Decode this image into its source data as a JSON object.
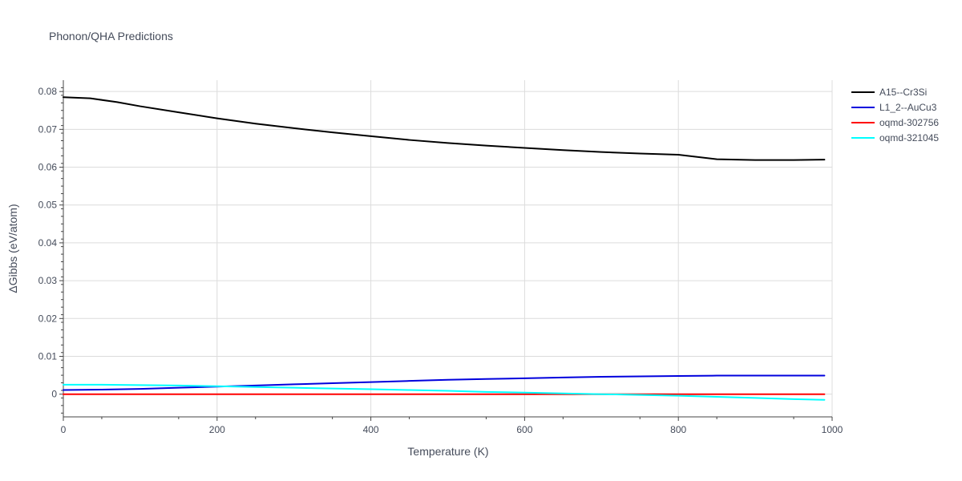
{
  "chart_data": {
    "type": "line",
    "title": "Phonon/QHA Predictions",
    "xlabel": "Temperature (K)",
    "ylabel": "ΔGibbs (eV/atom)",
    "xlim": [
      0,
      1000
    ],
    "ylim": [
      -0.006,
      0.083
    ],
    "x_ticks": [
      0,
      200,
      400,
      600,
      800,
      1000
    ],
    "y_ticks": [
      0,
      0.01,
      0.02,
      0.03,
      0.04,
      0.05,
      0.06,
      0.07,
      0.08
    ],
    "x_tick_labels": [
      "0",
      "200",
      "400",
      "600",
      "800",
      "1000"
    ],
    "y_tick_labels": [
      "0",
      "0.01",
      "0.02",
      "0.03",
      "0.04",
      "0.05",
      "0.06",
      "0.07",
      "0.08"
    ],
    "grid": true,
    "legend_position": "top-right outside",
    "series": [
      {
        "name": "A15--Cr3Si",
        "color": "#000000",
        "x": [
          0,
          35,
          70,
          100,
          150,
          200,
          250,
          300,
          350,
          400,
          450,
          500,
          550,
          600,
          650,
          700,
          750,
          800,
          850,
          900,
          950,
          990
        ],
        "y": [
          0.0785,
          0.0782,
          0.0772,
          0.0761,
          0.0745,
          0.0729,
          0.0715,
          0.0703,
          0.0692,
          0.0682,
          0.0672,
          0.0664,
          0.0657,
          0.0651,
          0.0645,
          0.064,
          0.0636,
          0.0633,
          0.0621,
          0.0619,
          0.0619,
          0.062
        ]
      },
      {
        "name": "L1_2--AuCu3",
        "color": "#0000dd",
        "x": [
          0,
          50,
          100,
          150,
          200,
          250,
          300,
          350,
          400,
          450,
          500,
          550,
          600,
          650,
          700,
          750,
          800,
          850,
          900,
          950,
          990
        ],
        "y": [
          0.0011,
          0.0012,
          0.0014,
          0.0017,
          0.002,
          0.0023,
          0.0026,
          0.0029,
          0.0032,
          0.0035,
          0.0038,
          0.004,
          0.0042,
          0.0044,
          0.0046,
          0.0047,
          0.0048,
          0.0049,
          0.0049,
          0.0049,
          0.0049
        ]
      },
      {
        "name": "oqmd-302756",
        "color": "#ff0000",
        "x": [
          0,
          100,
          200,
          300,
          400,
          500,
          600,
          700,
          800,
          900,
          990
        ],
        "y": [
          0.0,
          0.0,
          0.0,
          0.0,
          0.0,
          0.0,
          0.0,
          0.0,
          0.0,
          0.0,
          0.0
        ]
      },
      {
        "name": "oqmd-321045",
        "color": "#00ffff",
        "x": [
          0,
          50,
          100,
          150,
          200,
          250,
          300,
          350,
          400,
          450,
          500,
          550,
          600,
          650,
          700,
          750,
          800,
          850,
          900,
          950,
          990
        ],
        "y": [
          0.0025,
          0.0025,
          0.0024,
          0.0023,
          0.0021,
          0.0019,
          0.0017,
          0.0015,
          0.0013,
          0.0011,
          0.0009,
          0.0006,
          0.0004,
          0.0002,
          0.0,
          -0.0002,
          -0.0004,
          -0.0007,
          -0.001,
          -0.0013,
          -0.0015
        ]
      }
    ]
  }
}
